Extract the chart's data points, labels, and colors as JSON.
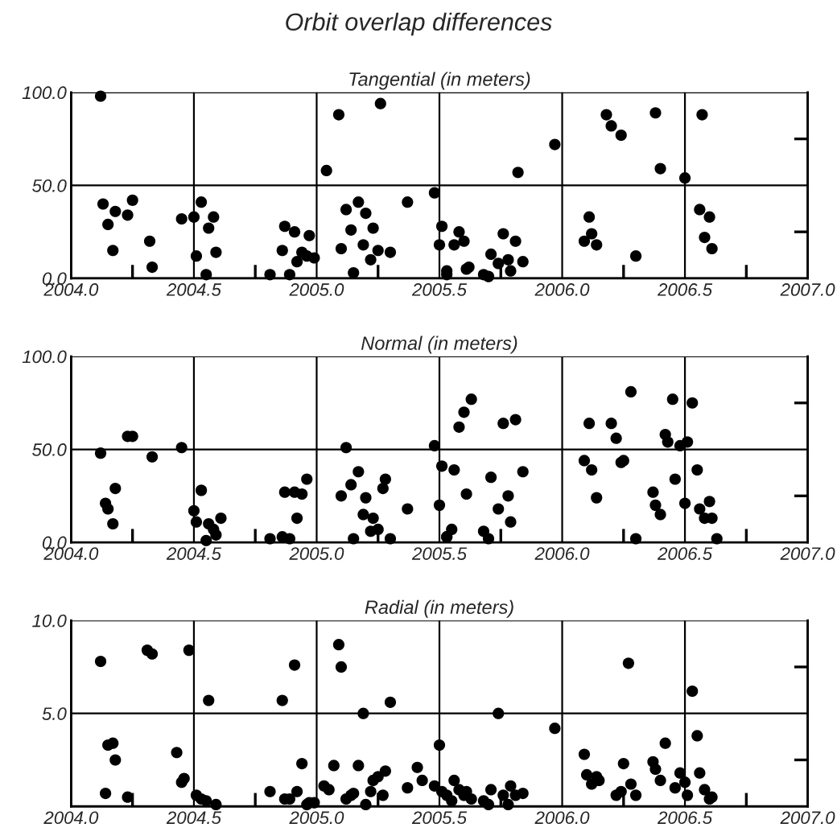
{
  "chart_data": [
    {
      "type": "scatter",
      "title": "Orbit overlap differences",
      "subtitle": "Tangential (in meters)",
      "marker": "circle",
      "grid": true,
      "xlim": [
        2004.0,
        2007.0
      ],
      "xticks": [
        {
          "value": 2004.0,
          "label": "2004.0"
        },
        {
          "value": 2004.25,
          "label": null
        },
        {
          "value": 2004.5,
          "label": "2004.5"
        },
        {
          "value": 2004.75,
          "label": null
        },
        {
          "value": 2005.0,
          "label": "2005.0"
        },
        {
          "value": 2005.25,
          "label": null
        },
        {
          "value": 2005.5,
          "label": "2005.5"
        },
        {
          "value": 2005.75,
          "label": null
        },
        {
          "value": 2006.0,
          "label": "2006.0"
        },
        {
          "value": 2006.25,
          "label": null
        },
        {
          "value": 2006.5,
          "label": "2006.5"
        },
        {
          "value": 2006.75,
          "label": null
        },
        {
          "value": 2007.0,
          "label": "2007.0"
        }
      ],
      "ylim": [
        0,
        100
      ],
      "yticks": [
        {
          "value": 0,
          "label": "0.0"
        },
        {
          "value": 25,
          "label": null
        },
        {
          "value": 50,
          "label": "50.0"
        },
        {
          "value": 75,
          "label": null
        },
        {
          "value": 100,
          "label": "100.0"
        }
      ],
      "series": [
        {
          "color": "#000000",
          "x": [
            2004.12,
            2004.13,
            2004.15,
            2004.18,
            2004.23,
            2004.25,
            2004.17,
            2004.32,
            2004.33,
            2004.45,
            2004.5,
            2004.53,
            2004.58,
            2004.56,
            2004.51,
            2004.59,
            2004.55,
            2004.81,
            2004.87,
            2004.91,
            2004.97,
            2004.86,
            2004.94,
            2004.92,
            2004.96,
            2004.99,
            2004.89,
            2005.04,
            2005.09,
            2005.26,
            2005.12,
            2005.17,
            2005.2,
            2005.14,
            2005.23,
            2005.1,
            2005.19,
            2005.22,
            2005.25,
            2005.3,
            2005.15,
            2005.37,
            2005.48,
            2005.51,
            2005.5,
            2005.53,
            2005.58,
            2005.6,
            2005.56,
            2005.53,
            2005.62,
            2005.61,
            2005.68,
            2005.7,
            2005.71,
            2005.74,
            2005.78,
            2005.79,
            2005.84,
            2005.76,
            2005.81,
            2005.82,
            2005.97,
            2006.18,
            2006.2,
            2006.24,
            2006.38,
            2006.57,
            2006.4,
            2006.5,
            2006.11,
            2006.12,
            2006.09,
            2006.14,
            2006.3,
            2006.56,
            2006.6,
            2006.58,
            2006.61
          ],
          "values": [
            98,
            40,
            29,
            36,
            34,
            42,
            15,
            20,
            6,
            32,
            33,
            41,
            33,
            27,
            12,
            14,
            2,
            2,
            28,
            25,
            23,
            15,
            14,
            9,
            12,
            11,
            2,
            58,
            88,
            94,
            37,
            41,
            35,
            26,
            27,
            16,
            18,
            10,
            15,
            14,
            3,
            41,
            46,
            28,
            18,
            2,
            25,
            20,
            18,
            4,
            6,
            5,
            2,
            1,
            13,
            8,
            10,
            4,
            9,
            24,
            20,
            57,
            72,
            88,
            82,
            77,
            89,
            88,
            59,
            54,
            33,
            24,
            20,
            18,
            12,
            37,
            33,
            22,
            16
          ]
        }
      ]
    },
    {
      "type": "scatter",
      "subtitle": "Normal (in meters)",
      "marker": "circle",
      "grid": true,
      "xlim": [
        2004.0,
        2007.0
      ],
      "xticks": [
        {
          "value": 2004.0,
          "label": "2004.0"
        },
        {
          "value": 2004.25,
          "label": null
        },
        {
          "value": 2004.5,
          "label": "2004.5"
        },
        {
          "value": 2004.75,
          "label": null
        },
        {
          "value": 2005.0,
          "label": "2005.0"
        },
        {
          "value": 2005.25,
          "label": null
        },
        {
          "value": 2005.5,
          "label": "2005.5"
        },
        {
          "value": 2005.75,
          "label": null
        },
        {
          "value": 2006.0,
          "label": "2006.0"
        },
        {
          "value": 2006.25,
          "label": null
        },
        {
          "value": 2006.5,
          "label": "2006.5"
        },
        {
          "value": 2006.75,
          "label": null
        },
        {
          "value": 2007.0,
          "label": "2007.0"
        }
      ],
      "ylim": [
        0,
        100
      ],
      "yticks": [
        {
          "value": 0,
          "label": "0.0"
        },
        {
          "value": 25,
          "label": null
        },
        {
          "value": 50,
          "label": "50.0"
        },
        {
          "value": 75,
          "label": null
        },
        {
          "value": 100,
          "label": "100.0"
        }
      ],
      "series": [
        {
          "color": "#000000",
          "x": [
            2004.12,
            2004.23,
            2004.25,
            2004.33,
            2004.45,
            2004.14,
            2004.15,
            2004.18,
            2004.17,
            2004.5,
            2004.53,
            2004.51,
            2004.56,
            2004.58,
            2004.59,
            2004.61,
            2004.55,
            2004.81,
            2004.86,
            2004.89,
            2004.87,
            2004.91,
            2004.94,
            2004.96,
            2004.92,
            2005.12,
            2005.1,
            2005.14,
            2005.17,
            2005.2,
            2005.19,
            2005.23,
            2005.22,
            2005.25,
            2005.27,
            2005.28,
            2005.15,
            2005.3,
            2005.37,
            2005.48,
            2005.51,
            2005.5,
            2005.53,
            2005.56,
            2005.55,
            2005.53,
            2005.58,
            2005.6,
            2005.63,
            2005.61,
            2005.68,
            2005.7,
            2005.71,
            2005.74,
            2005.78,
            2005.79,
            2005.84,
            2005.76,
            2005.81,
            2006.11,
            2006.2,
            2006.22,
            2006.28,
            2006.09,
            2006.12,
            2006.14,
            2006.24,
            2006.25,
            2006.3,
            2006.45,
            2006.53,
            2006.42,
            2006.43,
            2006.48,
            2006.51,
            2006.46,
            2006.55,
            2006.37,
            2006.38,
            2006.4,
            2006.5,
            2006.56,
            2006.6,
            2006.58,
            2006.61,
            2006.63
          ],
          "values": [
            48,
            57,
            57,
            46,
            51,
            21,
            18,
            29,
            10,
            17,
            28,
            11,
            10,
            7,
            4,
            13,
            1,
            2,
            3,
            2,
            27,
            27,
            26,
            34,
            13,
            51,
            25,
            31,
            38,
            24,
            15,
            13,
            6,
            7,
            29,
            34,
            2,
            2,
            18,
            52,
            41,
            20,
            3,
            39,
            7,
            3,
            62,
            70,
            77,
            26,
            6,
            2,
            35,
            18,
            25,
            11,
            38,
            64,
            66,
            64,
            64,
            56,
            81,
            44,
            39,
            24,
            43,
            44,
            2,
            77,
            75,
            58,
            54,
            52,
            54,
            34,
            39,
            27,
            20,
            15,
            21,
            18,
            22,
            13,
            13,
            2
          ]
        }
      ]
    },
    {
      "type": "scatter",
      "subtitle": "Radial (in meters)",
      "marker": "circle",
      "grid": true,
      "xlim": [
        2004.0,
        2007.0
      ],
      "xticks": [
        {
          "value": 2004.0,
          "label": "2004.0"
        },
        {
          "value": 2004.25,
          "label": null
        },
        {
          "value": 2004.5,
          "label": "2004.5"
        },
        {
          "value": 2004.75,
          "label": null
        },
        {
          "value": 2005.0,
          "label": "2005.0"
        },
        {
          "value": 2005.25,
          "label": null
        },
        {
          "value": 2005.5,
          "label": "2005.5"
        },
        {
          "value": 2005.75,
          "label": null
        },
        {
          "value": 2006.0,
          "label": "2006.0"
        },
        {
          "value": 2006.25,
          "label": null
        },
        {
          "value": 2006.5,
          "label": "2006.5"
        },
        {
          "value": 2006.75,
          "label": null
        },
        {
          "value": 2007.0,
          "label": "2007.0"
        }
      ],
      "ylim": [
        0,
        10
      ],
      "yticks": [
        {
          "value": 2.5,
          "label": null
        },
        {
          "value": 5,
          "label": "5.0"
        },
        {
          "value": 7.5,
          "label": null
        },
        {
          "value": 10,
          "label": "10.0"
        }
      ],
      "series": [
        {
          "color": "#000000",
          "x": [
            2004.12,
            2004.31,
            2004.33,
            2004.48,
            2004.56,
            2004.15,
            2004.17,
            2004.18,
            2004.14,
            2004.23,
            2004.43,
            2004.45,
            2004.46,
            2004.51,
            2004.53,
            2004.55,
            2004.59,
            2004.81,
            2004.87,
            2004.89,
            2004.92,
            2004.86,
            2004.91,
            2004.94,
            2004.96,
            2004.97,
            2004.99,
            2005.09,
            2005.1,
            2005.19,
            2005.3,
            2005.07,
            2005.17,
            2005.03,
            2005.05,
            2005.12,
            2005.14,
            2005.15,
            2005.2,
            2005.22,
            2005.23,
            2005.25,
            2005.27,
            2005.28,
            2005.37,
            2005.41,
            2005.43,
            2005.48,
            2005.5,
            2005.51,
            2005.53,
            2005.56,
            2005.58,
            2005.6,
            2005.61,
            2005.63,
            2005.55,
            2005.68,
            2005.7,
            2005.71,
            2005.74,
            2005.76,
            2005.78,
            2005.79,
            2005.81,
            2005.84,
            2005.97,
            2006.27,
            2006.53,
            2006.55,
            2006.42,
            2006.09,
            2006.1,
            2006.12,
            2006.14,
            2006.15,
            2006.22,
            2006.24,
            2006.25,
            2006.28,
            2006.3,
            2006.37,
            2006.38,
            2006.4,
            2006.46,
            2006.48,
            2006.5,
            2006.51,
            2006.56,
            2006.58,
            2006.6,
            2006.61
          ],
          "values": [
            7.8,
            8.4,
            8.2,
            8.4,
            5.7,
            3.3,
            3.4,
            2.5,
            0.7,
            0.5,
            2.9,
            1.3,
            1.5,
            0.6,
            0.4,
            0.3,
            0.1,
            0.8,
            0.4,
            0.4,
            0.8,
            5.7,
            7.6,
            2.3,
            0.1,
            0.2,
            0.2,
            8.7,
            7.5,
            5.0,
            5.6,
            2.2,
            2.2,
            1.1,
            0.9,
            0.4,
            0.6,
            0.7,
            0.1,
            0.8,
            1.4,
            1.6,
            0.6,
            1.9,
            1.0,
            2.1,
            1.4,
            1.1,
            3.3,
            0.8,
            0.6,
            1.4,
            0.9,
            0.6,
            0.8,
            0.4,
            0.3,
            0.3,
            0.1,
            0.9,
            5.0,
            0.6,
            0.1,
            1.1,
            0.6,
            0.7,
            4.2,
            7.7,
            6.2,
            3.8,
            3.4,
            2.8,
            1.7,
            1.2,
            1.6,
            1.4,
            0.6,
            0.8,
            2.3,
            1.2,
            0.6,
            2.4,
            2.0,
            1.4,
            1.0,
            1.8,
            1.3,
            0.6,
            1.8,
            0.9,
            0.4,
            0.5
          ]
        }
      ]
    }
  ]
}
